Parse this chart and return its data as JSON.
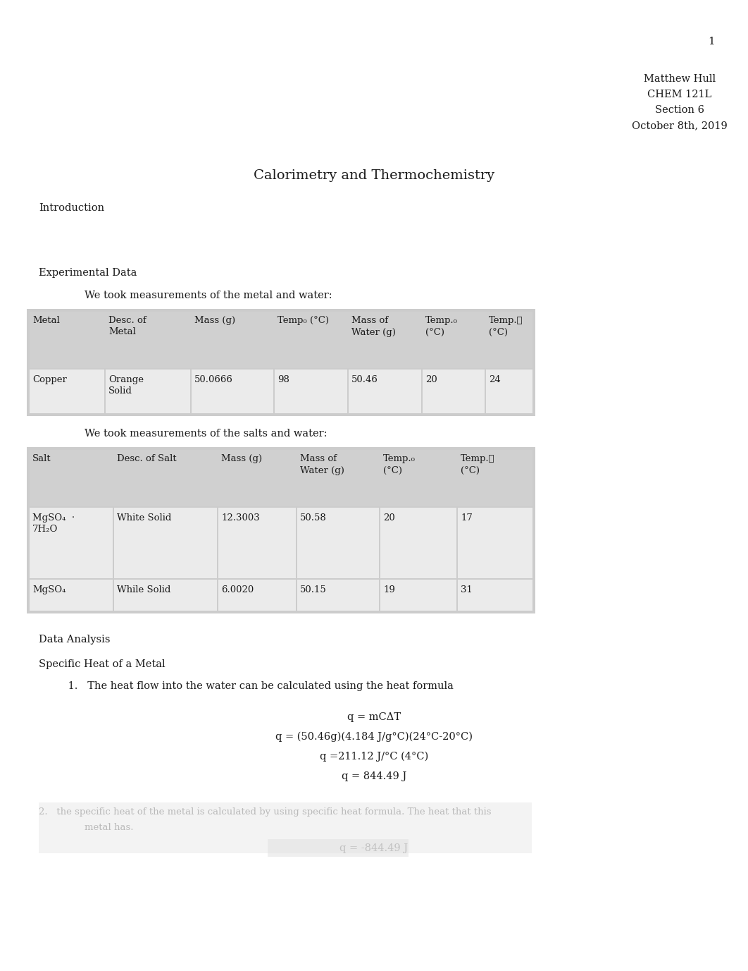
{
  "page_number": "1",
  "header_lines": [
    "Matthew Hull",
    "CHEM 121L",
    "Section 6",
    "October 8th, 2019"
  ],
  "title": "Calorimetry and Thermochemistry",
  "section1_header": "Introduction",
  "section2_header": "Experimental Data",
  "metal_table_intro": "We took measurements of the metal and water:",
  "metal_headers": [
    "Metal",
    "Desc. of\nMetal",
    "Mass (g)",
    "Temp₀ (°C)",
    "Mass of\nWater (g)",
    "Temp.₀\n(°C)",
    "Temp.⁦\n(°C)"
  ],
  "metal_data": [
    [
      "Copper",
      "Orange\nSolid",
      "50.0666",
      "98",
      "50.46",
      "20",
      "24"
    ]
  ],
  "salt_table_intro": "We took measurements of the salts and water:",
  "salt_headers": [
    "Salt",
    "Desc. of Salt",
    "Mass (g)",
    "Mass of\nWater (g)",
    "Temp.₀\n(°C)",
    "Temp.⁦\n(°C)"
  ],
  "salt_data": [
    [
      "MgSO₄  ·\n7H₂O",
      "White Solid",
      "12.3003",
      "50.58",
      "20",
      "17"
    ],
    [
      "MgSO₄",
      "While Solid",
      "6.0020",
      "50.15",
      "19",
      "31"
    ]
  ],
  "section3_header": "Data Analysis",
  "subsection_header": "Specific Heat of a Metal",
  "item1_text": "The heat flow into the water can be calculated using the heat formula",
  "equations": [
    "q = mCΔT",
    "q = (50.46g)(4.184 J/g°C)(24°C-20°C)",
    "q =211.12 J/°C (4°C)",
    "q = 844.49 J"
  ],
  "font_family": "DejaVu Serif",
  "bg_color": "#ffffff",
  "text_color": "#1a1a1a",
  "gray_text": "#999999",
  "table_outer_bg": "#cccccc",
  "table_header_bg": "#d0d0d0",
  "table_cell_bg": "#ebebeb"
}
